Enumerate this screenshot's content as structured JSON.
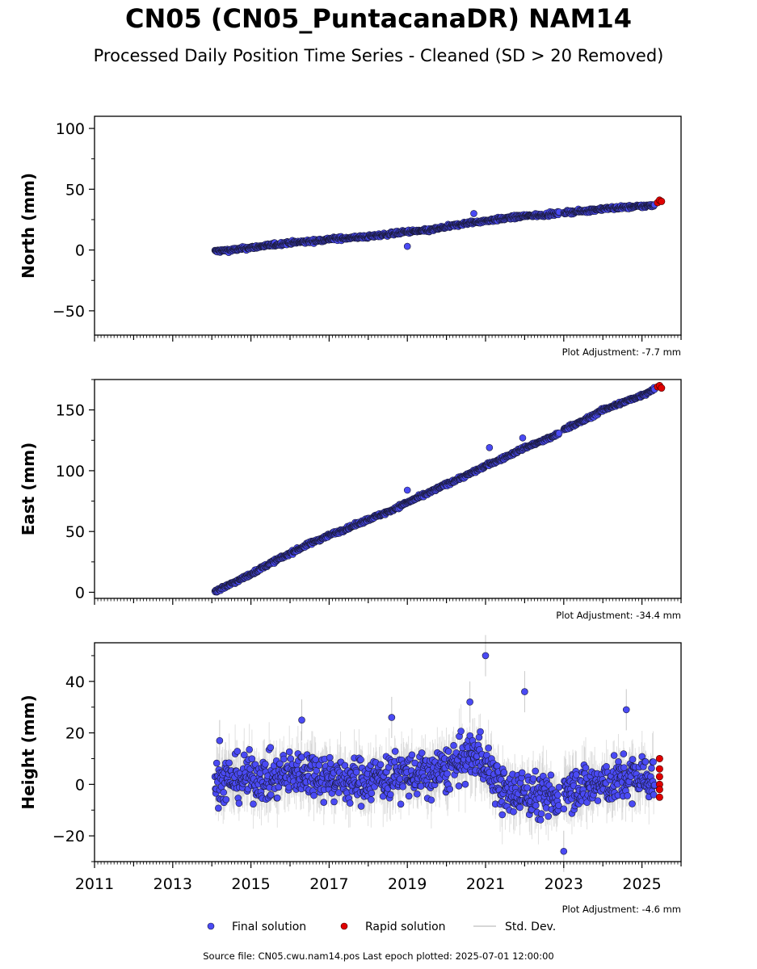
{
  "chart_data": {
    "type": "scatter",
    "title": "CN05 (CN05_PuntacanaDR) NAM14",
    "subtitle": "Processed Daily Position Time Series - Cleaned (SD > 20 Removed)",
    "x_tick_labels": [
      "2011",
      "2013",
      "2015",
      "2017",
      "2019",
      "2021",
      "2023",
      "2025"
    ],
    "xlim": [
      2011.0,
      2026.0
    ],
    "legend": {
      "placement": "bottom-center",
      "entries": [
        "Final solution",
        "Rapid solution",
        "Std. Dev."
      ]
    },
    "colors": {
      "final": "#4a4af4",
      "rapid": "#e00000",
      "std": "#c8c8c8"
    },
    "footer": "Source file: CN05.cwu.nam14.pos  Last epoch plotted: 2025-07-01 12:00:00",
    "panels": [
      {
        "ylabel": "North (mm)",
        "ylim": [
          -70,
          110
        ],
        "y_tick_values": [
          -50,
          0,
          50,
          100
        ],
        "y_tick_labels": [
          "−50",
          "0",
          "50",
          "100"
        ],
        "adjustment": "Plot Adjustment: -7.7 mm",
        "final_series": {
          "x": [
            2014.1,
            2014.5,
            2015.0,
            2015.5,
            2016.0,
            2016.5,
            2017.0,
            2017.5,
            2018.0,
            2018.5,
            2019.0,
            2019.5,
            2020.0,
            2020.5,
            2021.0,
            2021.5,
            2022.0,
            2022.5,
            2022.85,
            2023.05,
            2023.5,
            2024.0,
            2024.5,
            2025.0,
            2025.3
          ],
          "y": [
            -1,
            0,
            2,
            4,
            6,
            7,
            9,
            10,
            11,
            13,
            15,
            16,
            19,
            22,
            24,
            26,
            28,
            29,
            30,
            31,
            32,
            34,
            35,
            36,
            37
          ]
        },
        "rapid_series": {
          "x": [
            2025.4,
            2025.45,
            2025.5
          ],
          "y": [
            39,
            41,
            40
          ]
        },
        "outliers": {
          "x": [
            2019.0,
            2020.7
          ],
          "y": [
            3,
            30
          ]
        }
      },
      {
        "ylabel": "East (mm)",
        "ylim": [
          -5,
          175
        ],
        "y_tick_values": [
          0,
          50,
          100,
          150
        ],
        "y_tick_labels": [
          "0",
          "50",
          "100",
          "150"
        ],
        "adjustment": "Plot Adjustment: -34.4 mm",
        "final_series": {
          "x": [
            2014.1,
            2014.5,
            2015.0,
            2015.5,
            2016.0,
            2016.5,
            2017.0,
            2017.5,
            2018.0,
            2018.5,
            2019.0,
            2019.5,
            2020.0,
            2020.5,
            2021.0,
            2021.5,
            2022.0,
            2022.5,
            2022.85,
            2023.05,
            2023.5,
            2024.0,
            2024.5,
            2025.0,
            2025.3
          ],
          "y": [
            1,
            7,
            15,
            24,
            32,
            40,
            47,
            53,
            60,
            66,
            74,
            81,
            89,
            96,
            104,
            111,
            119,
            125,
            130,
            135,
            141,
            150,
            156,
            162,
            167
          ]
        },
        "rapid_series": {
          "x": [
            2025.4,
            2025.45,
            2025.5
          ],
          "y": [
            169,
            170,
            168
          ]
        },
        "outliers": {
          "x": [
            2019.0,
            2021.1,
            2021.95
          ],
          "y": [
            84,
            119,
            127
          ]
        }
      },
      {
        "ylabel": "Height (mm)",
        "ylim": [
          -30,
          55
        ],
        "y_tick_values": [
          -20,
          0,
          20,
          40
        ],
        "y_tick_labels": [
          "−20",
          "0",
          "20",
          "40"
        ],
        "adjustment": "Plot Adjustment: -4.6 mm",
        "final_series": {
          "x": [
            2014.1,
            2014.5,
            2015.0,
            2015.5,
            2016.0,
            2016.5,
            2017.0,
            2017.5,
            2018.0,
            2018.5,
            2019.0,
            2019.5,
            2020.0,
            2020.5,
            2020.8,
            2021.0,
            2021.5,
            2022.0,
            2022.5,
            2022.85,
            2023.05,
            2023.5,
            2024.0,
            2024.5,
            2025.0,
            2025.3
          ],
          "y": [
            1,
            2,
            3,
            2,
            4,
            5,
            3,
            1,
            2,
            3,
            4,
            3,
            6,
            10,
            12,
            8,
            -4,
            -3,
            -5,
            -6,
            0,
            -1,
            0,
            2,
            3,
            2
          ],
          "spread": 8
        },
        "rapid_series": {
          "x": [
            2025.45,
            2025.45,
            2025.45,
            2025.45,
            2025.45,
            2025.45
          ],
          "y": [
            10,
            6,
            3,
            0,
            -2,
            -5
          ]
        },
        "outliers": {
          "x": [
            2021.0,
            2022.0,
            2020.6,
            2023.0,
            2024.6,
            2014.2,
            2016.3,
            2018.6
          ],
          "y": [
            50,
            36,
            32,
            -26,
            29,
            17,
            25,
            26
          ]
        }
      }
    ]
  }
}
